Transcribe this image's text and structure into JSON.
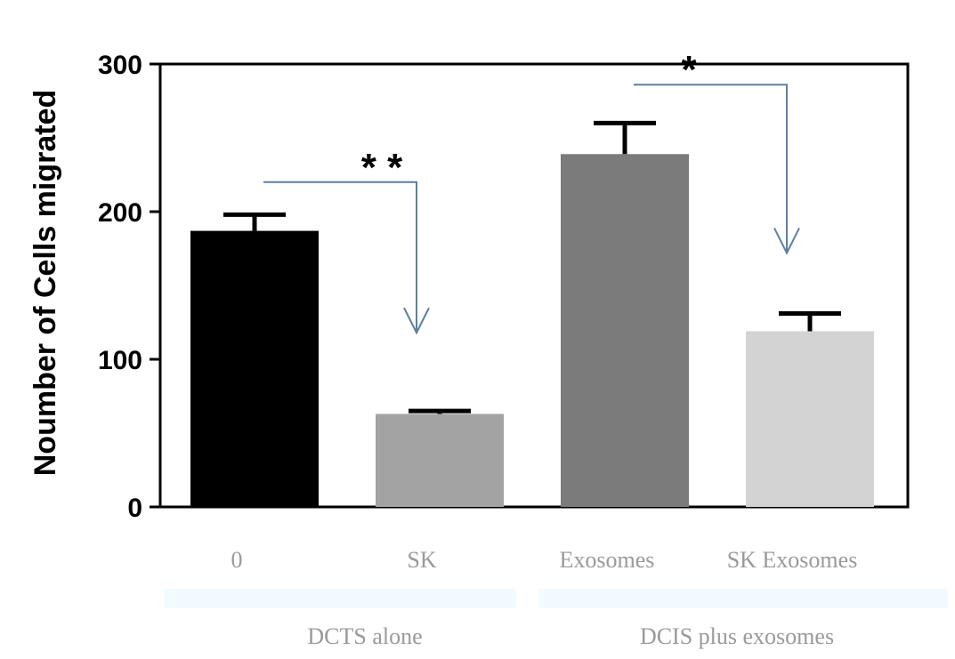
{
  "chart_data": {
    "type": "bar",
    "title": "",
    "xlabel": "",
    "ylabel": "Noumber of  Cells migrated",
    "ylim": [
      0,
      300
    ],
    "yticks": [
      0,
      100,
      200,
      300
    ],
    "categories": [
      "0",
      "SK",
      "Exosomes",
      "SK Exosomes"
    ],
    "values": [
      187,
      63,
      239,
      119
    ],
    "errors": [
      11,
      2,
      21,
      12
    ],
    "bar_colors": [
      "#000000",
      "#a3a3a3",
      "#7b7b7b",
      "#d3d3d3"
    ],
    "groups": [
      {
        "label": "DCTS alone",
        "categories": [
          0,
          1
        ]
      },
      {
        "label": "DCIS plus exosomes",
        "categories": [
          2,
          3
        ]
      }
    ],
    "significance": [
      {
        "from": 0,
        "to": 1,
        "label": "* *",
        "y": 220
      },
      {
        "from": 2,
        "to": 3,
        "label": "*",
        "y": 286
      }
    ],
    "grid": false,
    "legend": "none",
    "accent_color": "#5b7fa6"
  }
}
